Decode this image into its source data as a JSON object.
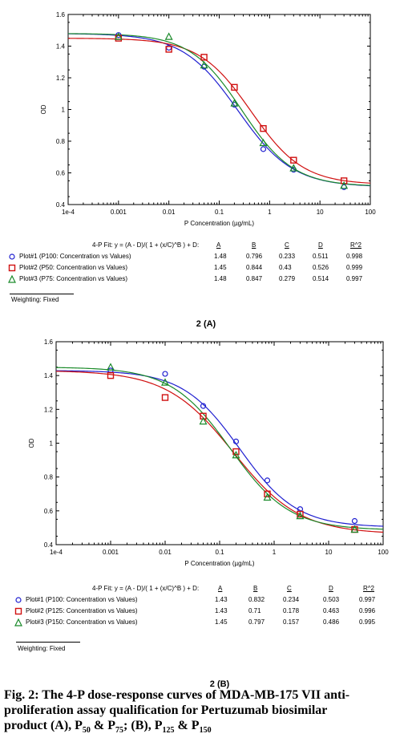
{
  "panels": [
    {
      "label": "2 (A)",
      "fit_header": "4-P Fit: y = (A - D)/( 1 + (x/C)^B ) + D:",
      "col_headers": [
        "A",
        "B",
        "C",
        "D",
        "R^2"
      ],
      "rows": [
        {
          "label": "Plot#1 (P100: Concentration vs Values)",
          "values": [
            "1.48",
            "0.796",
            "0.233",
            "0.511",
            "0.998"
          ]
        },
        {
          "label": "Plot#2 (P50: Concentration vs Values)",
          "values": [
            "1.45",
            "0.844",
            "0.43",
            "0.526",
            "0.999"
          ]
        },
        {
          "label": "Plot#3 (P75: Concentration vs Values)",
          "values": [
            "1.48",
            "0.847",
            "0.279",
            "0.514",
            "0.997"
          ]
        }
      ],
      "weighting": "Weighting: Fixed"
    },
    {
      "label": "2 (B)",
      "fit_header": "4-P Fit: y = (A - D)/( 1 + (x/C)^B ) + D:",
      "col_headers": [
        "A",
        "B",
        "C",
        "D",
        "R^2"
      ],
      "rows": [
        {
          "label": "Plot#1 (P100: Concentration vs Values)",
          "values": [
            "1.43",
            "0.832",
            "0.234",
            "0.503",
            "0.997"
          ]
        },
        {
          "label": "Plot#2 (P125: Concentration vs Values)",
          "values": [
            "1.43",
            "0.71",
            "0.178",
            "0.463",
            "0.996"
          ]
        },
        {
          "label": "Plot#3 (P150: Concentration vs Values)",
          "values": [
            "1.45",
            "0.797",
            "0.157",
            "0.486",
            "0.995"
          ]
        }
      ],
      "weighting": "Weighting: Fixed"
    }
  ],
  "caption": {
    "line1": "Fig. 2: The 4-P dose-response curves of MDA-MB-175 VII anti-",
    "line2": "proliferation assay qualification for Pertuzumab biosimilar",
    "line3_a": "product (A), P",
    "sub_50": "50",
    "amp1": " & P",
    "sub_75": "75",
    "mid": "; (B), P",
    "sub_125": "125",
    "amp2": " & P",
    "sub_150": "150"
  },
  "colors": {
    "plot1": "#1f1fd0",
    "plot2": "#d01010",
    "plot3": "#1a8a2a"
  },
  "markers": {
    "plot1": "circle",
    "plot2": "square",
    "plot3": "triangle"
  },
  "chart_data": [
    {
      "type": "scatter",
      "title": "",
      "xlabel": "P Concentration (µg/mL)",
      "ylabel": "OD",
      "xscale": "log",
      "xlim": [
        0.0001,
        100
      ],
      "ylim": [
        0.4,
        1.6
      ],
      "xticks": [
        "1e-4",
        "0.001",
        "0.01",
        "0.1",
        "1",
        "10",
        "100"
      ],
      "yticks": [
        "0.4",
        "0.6",
        "0.8",
        "1",
        "1.2",
        "1.4",
        "1.6"
      ],
      "grid": false,
      "series": [
        {
          "name": "Plot#1 (P100: Concentration vs Values)",
          "fit": {
            "A": 1.48,
            "B": 0.796,
            "C": 0.233,
            "D": 0.511
          },
          "x": [
            0.001,
            0.01,
            0.05,
            0.2,
            0.75,
            3,
            30
          ],
          "y": [
            1.47,
            1.39,
            1.27,
            1.03,
            0.75,
            0.62,
            0.51
          ]
        },
        {
          "name": "Plot#2 (P50: Concentration vs Values)",
          "fit": {
            "A": 1.45,
            "B": 0.844,
            "C": 0.43,
            "D": 0.526
          },
          "x": [
            0.001,
            0.01,
            0.05,
            0.2,
            0.75,
            3,
            30
          ],
          "y": [
            1.45,
            1.38,
            1.33,
            1.14,
            0.88,
            0.68,
            0.55
          ]
        },
        {
          "name": "Plot#3 (P75: Concentration vs Values)",
          "fit": {
            "A": 1.48,
            "B": 0.847,
            "C": 0.279,
            "D": 0.514
          },
          "x": [
            0.001,
            0.01,
            0.05,
            0.2,
            0.75,
            3,
            30
          ],
          "y": [
            1.46,
            1.46,
            1.28,
            1.04,
            0.79,
            0.63,
            0.52
          ]
        }
      ]
    },
    {
      "type": "scatter",
      "title": "",
      "xlabel": "P Concentration (µg/mL)",
      "ylabel": "OD",
      "xscale": "log",
      "xlim": [
        0.0001,
        100
      ],
      "ylim": [
        0.4,
        1.6
      ],
      "xticks": [
        "1e-4",
        "0.001",
        "0.01",
        "0.1",
        "1",
        "10",
        "100"
      ],
      "yticks": [
        "0.4",
        "0.6",
        "0.8",
        "1",
        "1.2",
        "1.4",
        "1.6"
      ],
      "grid": false,
      "series": [
        {
          "name": "Plot#1 (P100: Concentration vs Values)",
          "fit": {
            "A": 1.43,
            "B": 0.832,
            "C": 0.234,
            "D": 0.503
          },
          "x": [
            0.001,
            0.01,
            0.05,
            0.2,
            0.75,
            3,
            30
          ],
          "y": [
            1.43,
            1.41,
            1.22,
            1.01,
            0.78,
            0.61,
            0.54
          ]
        },
        {
          "name": "Plot#2 (P125: Concentration vs Values)",
          "fit": {
            "A": 1.43,
            "B": 0.71,
            "C": 0.178,
            "D": 0.463
          },
          "x": [
            0.001,
            0.01,
            0.05,
            0.2,
            0.75,
            3,
            30
          ],
          "y": [
            1.4,
            1.27,
            1.16,
            0.95,
            0.7,
            0.58,
            0.49
          ]
        },
        {
          "name": "Plot#3 (P150: Concentration vs Values)",
          "fit": {
            "A": 1.45,
            "B": 0.797,
            "C": 0.157,
            "D": 0.486
          },
          "x": [
            0.001,
            0.01,
            0.05,
            0.2,
            0.75,
            3,
            30
          ],
          "y": [
            1.45,
            1.36,
            1.13,
            0.93,
            0.68,
            0.57,
            0.49
          ]
        }
      ]
    }
  ]
}
